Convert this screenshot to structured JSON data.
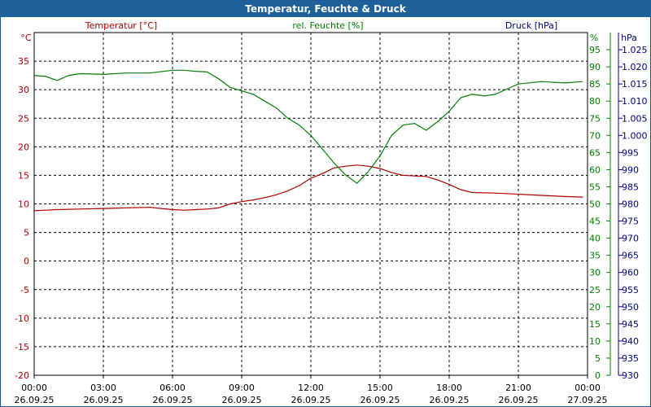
{
  "window": {
    "title": "Temperatur, Feuchte & Druck"
  },
  "chart_data": {
    "type": "line",
    "title": "Temperatur, Feuchte & Druck",
    "legend": [
      "Temperatur [°C]",
      "rel. Feuchte [%]",
      "Druck [hPa]"
    ],
    "colors": {
      "temperature": "#b00000",
      "humidity": "#008000",
      "pressure": "#00008b",
      "grid": "#000000"
    },
    "grid": true,
    "x_hours": [
      0,
      3,
      6,
      9,
      12,
      15,
      18,
      21,
      24
    ],
    "x_tick_times": [
      "00:00",
      "03:00",
      "06:00",
      "09:00",
      "12:00",
      "15:00",
      "18:00",
      "21:00",
      "00:00"
    ],
    "x_tick_dates": [
      "26.09.25",
      "26.09.25",
      "26.09.25",
      "26.09.25",
      "26.09.25",
      "26.09.25",
      "26.09.25",
      "26.09.25",
      "27.09.25"
    ],
    "axes": {
      "temperature": {
        "unit": "°C",
        "range": [
          -20,
          40
        ],
        "ticks": [
          -20,
          -15,
          -10,
          -5,
          0,
          5,
          10,
          15,
          20,
          25,
          30,
          35
        ]
      },
      "humidity": {
        "unit": "%",
        "range": [
          0,
          100
        ],
        "ticks": [
          0,
          5,
          10,
          15,
          20,
          25,
          30,
          35,
          40,
          45,
          50,
          55,
          60,
          65,
          70,
          75,
          80,
          85,
          90,
          95
        ]
      },
      "pressure": {
        "unit": "hPa",
        "range": [
          930,
          1030
        ],
        "ticks": [
          "930",
          "935",
          "940",
          "945",
          "950",
          "955",
          "960",
          "965",
          "970",
          "975",
          "980",
          "985",
          "990",
          "995",
          "1.000",
          "1.005",
          "1.010",
          "1.015",
          "1.020",
          "1.025"
        ]
      }
    },
    "series": [
      {
        "name": "Temperatur [°C]",
        "axis": "temperature",
        "points": [
          [
            0,
            8.8
          ],
          [
            0.5,
            8.9
          ],
          [
            1,
            9.0
          ],
          [
            2,
            9.1
          ],
          [
            3,
            9.2
          ],
          [
            4,
            9.3
          ],
          [
            5,
            9.4
          ],
          [
            5.5,
            9.2
          ],
          [
            6,
            9.0
          ],
          [
            6.5,
            8.9
          ],
          [
            7,
            9.0
          ],
          [
            7.5,
            9.1
          ],
          [
            8,
            9.3
          ],
          [
            8.5,
            10.0
          ],
          [
            9,
            10.4
          ],
          [
            9.5,
            10.7
          ],
          [
            10,
            11.1
          ],
          [
            10.5,
            11.6
          ],
          [
            11,
            12.3
          ],
          [
            11.5,
            13.2
          ],
          [
            12,
            14.5
          ],
          [
            12.5,
            15.3
          ],
          [
            13,
            16.3
          ],
          [
            13.5,
            16.6
          ],
          [
            14,
            16.8
          ],
          [
            14.5,
            16.6
          ],
          [
            15,
            16.2
          ],
          [
            15.5,
            15.5
          ],
          [
            16,
            15.0
          ],
          [
            16.5,
            14.9
          ],
          [
            17,
            14.8
          ],
          [
            17.5,
            14.2
          ],
          [
            18,
            13.4
          ],
          [
            18.5,
            12.5
          ],
          [
            19,
            12.0
          ],
          [
            20,
            11.9
          ],
          [
            21,
            11.7
          ],
          [
            22,
            11.5
          ],
          [
            23,
            11.3
          ],
          [
            23.8,
            11.2
          ]
        ]
      },
      {
        "name": "rel. Feuchte [%]",
        "axis": "humidity",
        "points": [
          [
            0,
            87.5
          ],
          [
            0.5,
            87.2
          ],
          [
            1,
            86
          ],
          [
            1.5,
            87.5
          ],
          [
            2,
            88
          ],
          [
            3,
            87.8
          ],
          [
            4,
            88.2
          ],
          [
            5,
            88.2
          ],
          [
            6,
            89
          ],
          [
            6.5,
            89
          ],
          [
            7,
            88.7
          ],
          [
            7.5,
            88.5
          ],
          [
            8,
            86.5
          ],
          [
            8.5,
            84
          ],
          [
            9,
            83
          ],
          [
            9.5,
            82
          ],
          [
            10,
            80
          ],
          [
            10.5,
            78
          ],
          [
            11,
            75
          ],
          [
            11.5,
            73
          ],
          [
            12,
            70
          ],
          [
            12.5,
            66
          ],
          [
            13,
            62
          ],
          [
            13.5,
            58.5
          ],
          [
            14,
            56
          ],
          [
            14.5,
            59.5
          ],
          [
            15,
            64
          ],
          [
            15.5,
            70
          ],
          [
            16,
            73
          ],
          [
            16.5,
            73.5
          ],
          [
            17,
            71.5
          ],
          [
            17.5,
            74
          ],
          [
            18,
            77
          ],
          [
            18.5,
            81
          ],
          [
            19,
            82
          ],
          [
            19.5,
            81.5
          ],
          [
            20,
            82
          ],
          [
            20.5,
            83.5
          ],
          [
            21,
            85
          ],
          [
            22,
            85.7
          ],
          [
            23,
            85.3
          ],
          [
            23.8,
            85.7
          ]
        ]
      }
    ]
  }
}
